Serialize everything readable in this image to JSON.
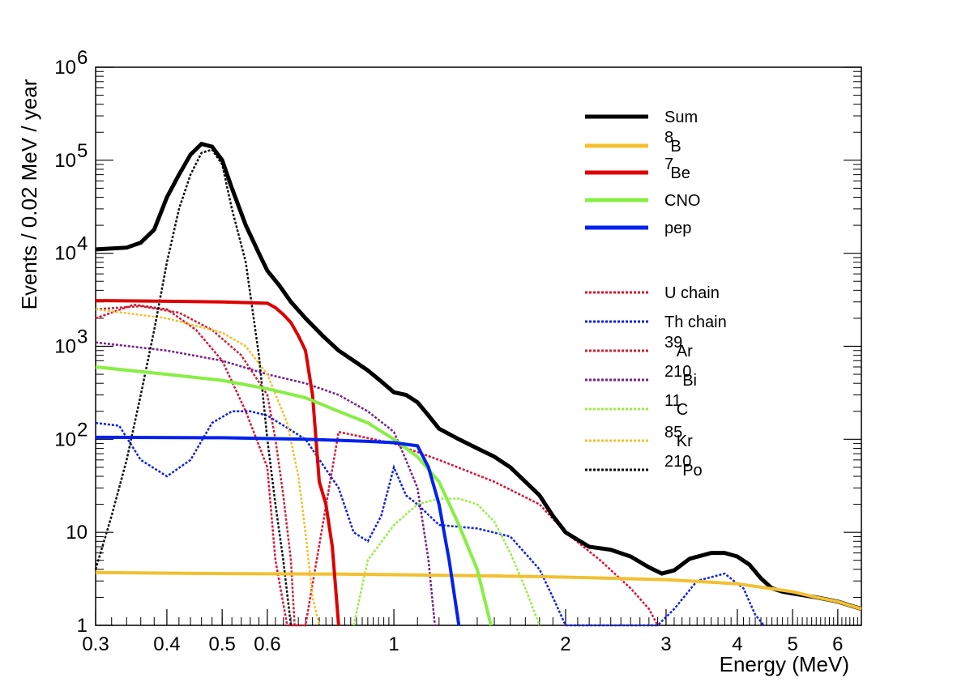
{
  "chart_data": {
    "type": "line",
    "xlabel": "Energy (MeV)",
    "ylabel": "Events / 0.02 MeV / year",
    "xscale": "log",
    "yscale": "log",
    "xlim": [
      0.3,
      6.6
    ],
    "ylim": [
      1,
      1000000
    ],
    "grid": false,
    "legend_position": "top-right",
    "x_ticks": [
      {
        "value": 0.3,
        "label": "0.3"
      },
      {
        "value": 0.4,
        "label": "0.4"
      },
      {
        "value": 0.5,
        "label": "0.5"
      },
      {
        "value": 0.6,
        "label": "0.6"
      },
      {
        "value": 1,
        "label": "1"
      },
      {
        "value": 2,
        "label": "2"
      },
      {
        "value": 3,
        "label": "3"
      },
      {
        "value": 4,
        "label": "4"
      },
      {
        "value": 5,
        "label": "5"
      },
      {
        "value": 6,
        "label": "6"
      }
    ],
    "y_ticks": [
      {
        "value": 1,
        "label": "1",
        "exp": ""
      },
      {
        "value": 10,
        "label": "10",
        "exp": ""
      },
      {
        "value": 100,
        "label": "10",
        "exp": "2"
      },
      {
        "value": 1000,
        "label": "10",
        "exp": "3"
      },
      {
        "value": 10000,
        "label": "10",
        "exp": "4"
      },
      {
        "value": 100000,
        "label": "10",
        "exp": "5"
      },
      {
        "value": 1000000,
        "label": "10",
        "exp": "6"
      }
    ],
    "series": [
      {
        "name": "Sum",
        "sup": "",
        "color": "#000000",
        "style": "solid",
        "points": [
          [
            0.3,
            11000
          ],
          [
            0.34,
            11500
          ],
          [
            0.36,
            13000
          ],
          [
            0.38,
            18000
          ],
          [
            0.4,
            40000
          ],
          [
            0.42,
            70000
          ],
          [
            0.44,
            115000
          ],
          [
            0.46,
            150000
          ],
          [
            0.48,
            140000
          ],
          [
            0.5,
            100000
          ],
          [
            0.52,
            50000
          ],
          [
            0.55,
            20000
          ],
          [
            0.58,
            10000
          ],
          [
            0.6,
            6500
          ],
          [
            0.63,
            4500
          ],
          [
            0.66,
            3000
          ],
          [
            0.7,
            2000
          ],
          [
            0.75,
            1300
          ],
          [
            0.8,
            900
          ],
          [
            0.85,
            700
          ],
          [
            0.9,
            550
          ],
          [
            0.95,
            420
          ],
          [
            1.0,
            320
          ],
          [
            1.05,
            300
          ],
          [
            1.1,
            250
          ],
          [
            1.15,
            180
          ],
          [
            1.2,
            130
          ],
          [
            1.3,
            100
          ],
          [
            1.4,
            80
          ],
          [
            1.5,
            65
          ],
          [
            1.6,
            50
          ],
          [
            1.7,
            35
          ],
          [
            1.8,
            25
          ],
          [
            1.9,
            15
          ],
          [
            2.0,
            10
          ],
          [
            2.2,
            7
          ],
          [
            2.4,
            6.5
          ],
          [
            2.6,
            5.5
          ],
          [
            2.8,
            4.2
          ],
          [
            2.95,
            3.6
          ],
          [
            3.1,
            3.9
          ],
          [
            3.3,
            5.2
          ],
          [
            3.6,
            6.0
          ],
          [
            3.8,
            6.0
          ],
          [
            4.0,
            5.5
          ],
          [
            4.2,
            4.5
          ],
          [
            4.4,
            3.2
          ],
          [
            4.6,
            2.5
          ],
          [
            4.8,
            2.3
          ],
          [
            5.0,
            2.2
          ],
          [
            5.5,
            2.0
          ],
          [
            6.0,
            1.8
          ],
          [
            6.6,
            1.5
          ]
        ]
      },
      {
        "name": "B",
        "sup": "8",
        "color": "#f2c030",
        "style": "solid",
        "points": [
          [
            0.3,
            3.7
          ],
          [
            0.5,
            3.6
          ],
          [
            0.8,
            3.55
          ],
          [
            1.0,
            3.5
          ],
          [
            1.5,
            3.4
          ],
          [
            2.0,
            3.3
          ],
          [
            3.0,
            3.1
          ],
          [
            4.0,
            2.8
          ],
          [
            5.0,
            2.3
          ],
          [
            5.5,
            2.0
          ],
          [
            6.0,
            1.8
          ],
          [
            6.6,
            1.5
          ]
        ]
      },
      {
        "name": "Be",
        "sup": "7",
        "color": "#dd0000",
        "style": "solid",
        "points": [
          [
            0.3,
            3100
          ],
          [
            0.4,
            3050
          ],
          [
            0.5,
            3000
          ],
          [
            0.6,
            2900
          ],
          [
            0.62,
            2600
          ],
          [
            0.64,
            2200
          ],
          [
            0.66,
            1800
          ],
          [
            0.68,
            1300
          ],
          [
            0.7,
            900
          ],
          [
            0.72,
            300
          ],
          [
            0.74,
            35
          ],
          [
            0.76,
            20
          ],
          [
            0.78,
            7
          ],
          [
            0.8,
            1
          ]
        ]
      },
      {
        "name": "CNO",
        "sup": "",
        "color": "#88ee44",
        "style": "solid",
        "points": [
          [
            0.3,
            600
          ],
          [
            0.4,
            500
          ],
          [
            0.5,
            430
          ],
          [
            0.6,
            350
          ],
          [
            0.7,
            280
          ],
          [
            0.8,
            200
          ],
          [
            0.9,
            150
          ],
          [
            1.0,
            100
          ],
          [
            1.1,
            65
          ],
          [
            1.2,
            35
          ],
          [
            1.3,
            12
          ],
          [
            1.4,
            4
          ],
          [
            1.48,
            1
          ]
        ]
      },
      {
        "name": "pep",
        "sup": "",
        "color": "#0022ee",
        "style": "solid",
        "points": [
          [
            0.3,
            105
          ],
          [
            0.5,
            104
          ],
          [
            0.7,
            100
          ],
          [
            0.9,
            95
          ],
          [
            1.0,
            92
          ],
          [
            1.1,
            85
          ],
          [
            1.15,
            50
          ],
          [
            1.2,
            20
          ],
          [
            1.25,
            5
          ],
          [
            1.3,
            1
          ]
        ]
      },
      {
        "name": "U chain",
        "sup": "",
        "color": "#dd1133",
        "style": "dashed",
        "points": [
          [
            0.3,
            2000
          ],
          [
            0.35,
            2800
          ],
          [
            0.4,
            2500
          ],
          [
            0.45,
            1500
          ],
          [
            0.5,
            700
          ],
          [
            0.55,
            200
          ],
          [
            0.6,
            50
          ],
          [
            0.62,
            5
          ],
          [
            0.65,
            1
          ],
          [
            0.7,
            1
          ],
          [
            0.8,
            120
          ],
          [
            1.0,
            90
          ],
          [
            1.2,
            60
          ],
          [
            1.5,
            35
          ],
          [
            1.8,
            20
          ],
          [
            2.0,
            10
          ],
          [
            2.3,
            5
          ],
          [
            2.6,
            2.5
          ],
          [
            2.8,
            1.5
          ],
          [
            2.9,
            1
          ]
        ]
      },
      {
        "name": "Th chain",
        "sup": "",
        "color": "#1122dd",
        "style": "dashed",
        "points": [
          [
            0.3,
            150
          ],
          [
            0.33,
            140
          ],
          [
            0.36,
            60
          ],
          [
            0.4,
            40
          ],
          [
            0.44,
            60
          ],
          [
            0.48,
            150
          ],
          [
            0.52,
            200
          ],
          [
            0.56,
            200
          ],
          [
            0.6,
            180
          ],
          [
            0.7,
            100
          ],
          [
            0.8,
            30
          ],
          [
            0.85,
            10
          ],
          [
            0.9,
            8
          ],
          [
            0.95,
            15
          ],
          [
            1.0,
            50
          ],
          [
            1.05,
            25
          ],
          [
            1.1,
            20
          ],
          [
            1.2,
            12
          ],
          [
            1.4,
            11
          ],
          [
            1.6,
            9
          ],
          [
            1.8,
            4
          ],
          [
            1.9,
            2
          ],
          [
            2.0,
            1
          ],
          [
            2.9,
            1
          ],
          [
            3.1,
            1.5
          ],
          [
            3.4,
            3
          ],
          [
            3.8,
            3.6
          ],
          [
            4.1,
            2.5
          ],
          [
            4.3,
            1.3
          ],
          [
            4.45,
            1
          ]
        ]
      },
      {
        "name": "Ar",
        "sup": "39",
        "color": "#cc2233",
        "style": "dashed",
        "points": [
          [
            0.3,
            2500
          ],
          [
            0.36,
            2700
          ],
          [
            0.42,
            2300
          ],
          [
            0.48,
            1500
          ],
          [
            0.54,
            800
          ],
          [
            0.6,
            300
          ],
          [
            0.62,
            100
          ],
          [
            0.64,
            25
          ],
          [
            0.66,
            5
          ],
          [
            0.67,
            1
          ]
        ]
      },
      {
        "name": "Bi",
        "sup": "210",
        "color": "#772288",
        "style": "dashed",
        "points": [
          [
            0.3,
            1100
          ],
          [
            0.4,
            900
          ],
          [
            0.5,
            700
          ],
          [
            0.6,
            500
          ],
          [
            0.7,
            400
          ],
          [
            0.8,
            300
          ],
          [
            0.9,
            200
          ],
          [
            1.0,
            120
          ],
          [
            1.05,
            60
          ],
          [
            1.1,
            30
          ],
          [
            1.15,
            5
          ],
          [
            1.18,
            1
          ]
        ]
      },
      {
        "name": "C",
        "sup": "11",
        "color": "#99ee44",
        "style": "dashed",
        "points": [
          [
            0.85,
            1
          ],
          [
            0.9,
            5
          ],
          [
            1.0,
            12
          ],
          [
            1.1,
            20
          ],
          [
            1.2,
            23
          ],
          [
            1.3,
            23
          ],
          [
            1.4,
            20
          ],
          [
            1.5,
            13
          ],
          [
            1.6,
            6
          ],
          [
            1.7,
            2.5
          ],
          [
            1.8,
            1
          ]
        ]
      },
      {
        "name": "Kr",
        "sup": "85",
        "color": "#f0c030",
        "style": "dashed",
        "points": [
          [
            0.3,
            2500
          ],
          [
            0.4,
            2000
          ],
          [
            0.5,
            1400
          ],
          [
            0.55,
            1000
          ],
          [
            0.6,
            500
          ],
          [
            0.65,
            150
          ],
          [
            0.68,
            40
          ],
          [
            0.7,
            10
          ],
          [
            0.72,
            2
          ],
          [
            0.74,
            1
          ]
        ]
      },
      {
        "name": "Po",
        "sup": "210",
        "color": "#111111",
        "style": "dashed",
        "points": [
          [
            0.3,
            4
          ],
          [
            0.32,
            15
          ],
          [
            0.34,
            60
          ],
          [
            0.36,
            300
          ],
          [
            0.38,
            1500
          ],
          [
            0.4,
            8000
          ],
          [
            0.42,
            30000
          ],
          [
            0.44,
            70000
          ],
          [
            0.46,
            120000
          ],
          [
            0.48,
            130000
          ],
          [
            0.5,
            90000
          ],
          [
            0.52,
            30000
          ],
          [
            0.55,
            8000
          ],
          [
            0.58,
            800
          ],
          [
            0.6,
            100
          ],
          [
            0.62,
            20
          ],
          [
            0.64,
            5
          ],
          [
            0.66,
            1
          ]
        ]
      }
    ]
  }
}
